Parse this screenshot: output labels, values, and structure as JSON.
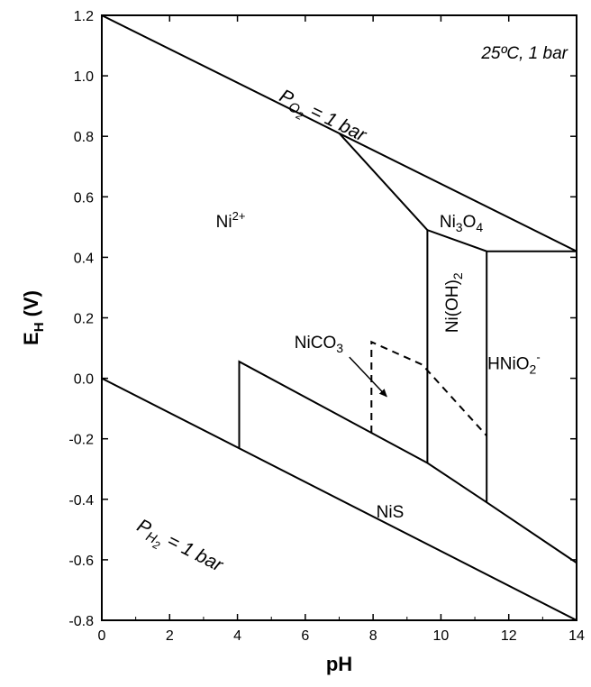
{
  "chart_data": {
    "type": "line",
    "title": "",
    "condition_label": "25ºC, 1 bar",
    "xlabel": "pH",
    "ylabel": "E",
    "ylabel_sub": "H",
    "ylabel_unit": " (V)",
    "xlim": [
      0,
      14
    ],
    "ylim": [
      -0.8,
      1.2
    ],
    "x_ticks": [
      0,
      2,
      4,
      6,
      8,
      10,
      12,
      14
    ],
    "x_tick_labels": [
      "0",
      "2",
      "4",
      "6",
      "8",
      "10",
      "12",
      "14"
    ],
    "y_ticks": [
      1.2,
      1.0,
      0.8,
      0.6,
      0.4,
      0.2,
      0.0,
      -0.2,
      -0.4,
      -0.6,
      -0.8
    ],
    "y_tick_labels": [
      "1.2",
      "1.0",
      "0.8",
      "0.6",
      "0.4",
      "0.2",
      "0.0",
      "-0.2",
      "-0.4",
      "-0.6",
      "-0.8"
    ],
    "grid": false,
    "boundaries": [
      {
        "points": [
          [
            0,
            1.2
          ],
          [
            14,
            0.42
          ]
        ],
        "style": "solid"
      },
      {
        "points": [
          [
            0,
            0.0
          ],
          [
            14,
            -0.8
          ]
        ],
        "style": "solid"
      },
      {
        "points": [
          [
            7.0,
            0.81
          ],
          [
            9.6,
            0.49
          ],
          [
            11.35,
            0.42
          ],
          [
            14,
            0.42
          ]
        ],
        "style": "solid"
      },
      {
        "points": [
          [
            9.6,
            0.49
          ],
          [
            9.6,
            -0.28
          ]
        ],
        "style": "solid"
      },
      {
        "points": [
          [
            11.35,
            0.42
          ],
          [
            11.35,
            -0.41
          ]
        ],
        "style": "solid"
      },
      {
        "points": [
          [
            4.05,
            -0.23
          ],
          [
            4.05,
            0.055
          ],
          [
            9.6,
            -0.28
          ],
          [
            11.35,
            -0.41
          ],
          [
            14,
            -0.61
          ]
        ],
        "style": "solid"
      },
      {
        "points": [
          [
            7.95,
            -0.18
          ],
          [
            7.95,
            0.12
          ],
          [
            9.45,
            0.045
          ],
          [
            11.35,
            -0.19
          ]
        ],
        "style": "dashed"
      }
    ],
    "arrows": [
      {
        "from": [
          7.3,
          0.07
        ],
        "to": [
          8.4,
          -0.06
        ]
      }
    ],
    "regions": [
      {
        "label": "Ni",
        "sup": "2+",
        "sub": "",
        "sub2": "",
        "at": [
          3.8,
          0.5
        ]
      },
      {
        "label": "Ni",
        "sup": "",
        "sub": "3",
        "mid": "O",
        "sub2": "4",
        "at": [
          10.6,
          0.5
        ]
      },
      {
        "label": "Ni(OH)",
        "sub": "2",
        "at": [
          10.5,
          0.25
        ],
        "rotate": -90
      },
      {
        "label": "HNiO",
        "sub": "2",
        "sup": "-",
        "at": [
          12.15,
          0.03
        ]
      },
      {
        "label": "NiCO",
        "sub": "3",
        "at": [
          6.4,
          0.1
        ]
      },
      {
        "label": "NiS",
        "at": [
          8.5,
          -0.46
        ]
      }
    ],
    "line_labels": [
      {
        "text": "P",
        "sub": "O",
        "subsub": "2",
        "rest": " = 1 bar",
        "at": [
          5.2,
          0.92
        ],
        "along": [
          [
            0,
            1.2
          ],
          [
            14,
            0.42
          ]
        ]
      },
      {
        "text": "P",
        "sub": "H",
        "subsub": "2",
        "rest": " = 1 bar",
        "at": [
          1.0,
          -0.5
        ],
        "along": [
          [
            0,
            0.0
          ],
          [
            14,
            -0.8
          ]
        ]
      }
    ]
  }
}
